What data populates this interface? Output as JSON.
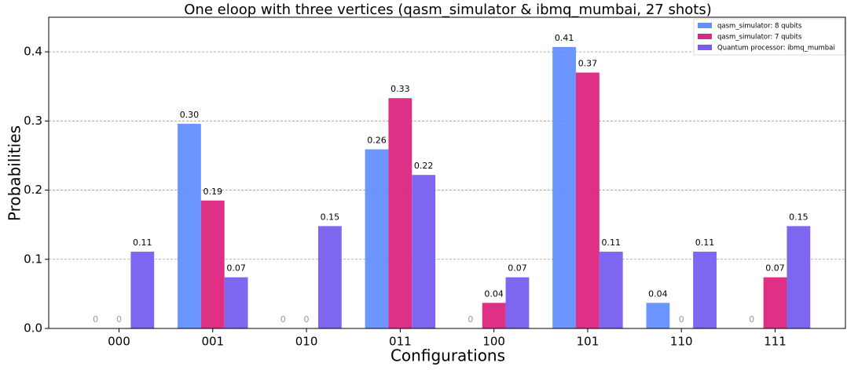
{
  "chart_data": {
    "type": "bar",
    "title": "One eloop with three vertices (qasm_simulator & ibmq_mumbai, 27 shots)",
    "x_label": "Configurations",
    "y_label": "Probabilities",
    "categories": [
      "000",
      "001",
      "010",
      "011",
      "100",
      "101",
      "110",
      "111"
    ],
    "series": [
      {
        "name": "qasm_simulator: 8 qubits",
        "color": "#648fff",
        "values": [
          0,
          0.296,
          0,
          0.259,
          0,
          0.407,
          0.037,
          0
        ],
        "value_labels": [
          "0",
          "0.30",
          "0",
          "0.26",
          "0",
          "0.41",
          "0.04",
          "0"
        ]
      },
      {
        "name": "qasm_simulator: 7 qubits",
        "color": "#dc267f",
        "values": [
          0,
          0.185,
          0,
          0.333,
          0.037,
          0.37,
          0,
          0.074
        ],
        "value_labels": [
          "0",
          "0.19",
          "0",
          "0.33",
          "0.04",
          "0.37",
          "0",
          "0.07"
        ]
      },
      {
        "name": "Quantum processor: ibmq_mumbai",
        "color": "#785ef0",
        "values": [
          0.111,
          0.074,
          0.148,
          0.222,
          0.074,
          0.111,
          0.111,
          0.148
        ],
        "value_labels": [
          "0.11",
          "0.07",
          "0.15",
          "0.22",
          "0.07",
          "0.11",
          "0.11",
          "0.15"
        ]
      }
    ],
    "ylim": [
      0,
      0.45
    ],
    "yticks": [
      {
        "value": 0,
        "label": "0.0"
      },
      0.1,
      0.2,
      0.3,
      0.4
    ],
    "grid": true,
    "legend": "upper right"
  }
}
